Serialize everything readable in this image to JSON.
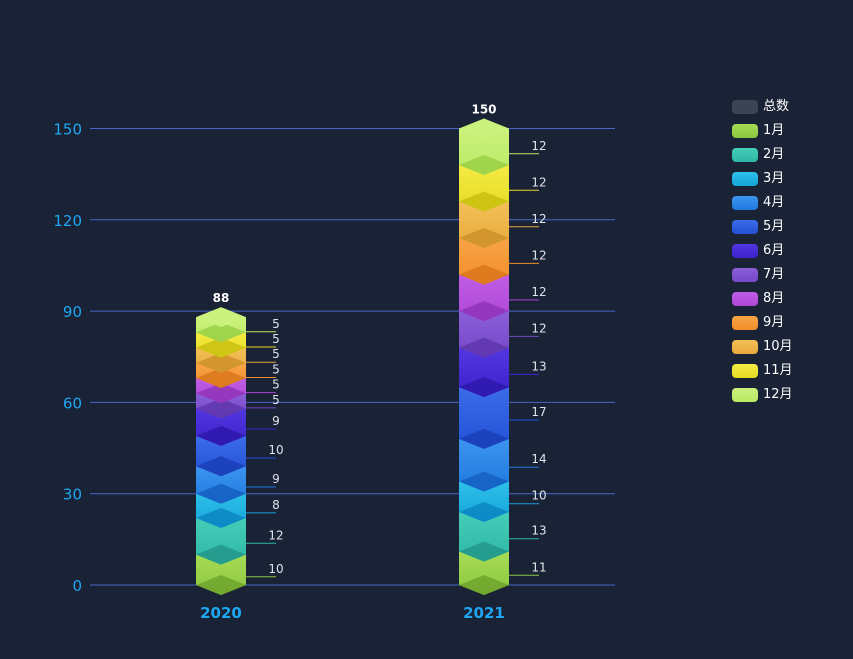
{
  "chart_data": {
    "type": "bar",
    "stacked": true,
    "categories": [
      "2020",
      "2021"
    ],
    "totals": [
      88,
      150
    ],
    "total_series_name": "总数",
    "total_series_color": "#3b4354",
    "series": [
      {
        "name": "1月",
        "values": [
          10,
          11
        ],
        "color": "#8cc63f",
        "color_light": "#a7dc55",
        "color_dark": "#6ea52c"
      },
      {
        "name": "2月",
        "values": [
          12,
          13
        ],
        "color": "#2fb7a7",
        "color_light": "#45cdb8",
        "color_dark": "#22968a"
      },
      {
        "name": "3月",
        "values": [
          8,
          10
        ],
        "color": "#14a4d8",
        "color_light": "#2ec0ea",
        "color_dark": "#0b86c2"
      },
      {
        "name": "4月",
        "values": [
          9,
          14
        ],
        "color": "#1f78e0",
        "color_light": "#3c95ee",
        "color_dark": "#155fc2"
      },
      {
        "name": "5月",
        "values": [
          10,
          17
        ],
        "color": "#2350d6",
        "color_light": "#3b6ce8",
        "color_dark": "#1a3eb8"
      },
      {
        "name": "6月",
        "values": [
          9,
          13
        ],
        "color": "#3d22cc",
        "color_light": "#5236e0",
        "color_dark": "#2d18aa"
      },
      {
        "name": "7月",
        "values": [
          5,
          12
        ],
        "color": "#7447c8",
        "color_light": "#8a5fd8",
        "color_dark": "#5e36ac"
      },
      {
        "name": "8月",
        "values": [
          5,
          12
        ],
        "color": "#ad47d6",
        "color_light": "#c05de6",
        "color_dark": "#9034b8"
      },
      {
        "name": "9月",
        "values": [
          5,
          12
        ],
        "color": "#f28d2a",
        "color_light": "#f7a547",
        "color_dark": "#d9771b"
      },
      {
        "name": "10月",
        "values": [
          5,
          12
        ],
        "color": "#e8aa3c",
        "color_light": "#f2c058",
        "color_dark": "#cf922a"
      },
      {
        "name": "11月",
        "values": [
          5,
          12
        ],
        "color": "#e4d920",
        "color_light": "#f5ec45",
        "color_dark": "#c9bf10"
      },
      {
        "name": "12月",
        "values": [
          5,
          12
        ],
        "color": "#b8ea62",
        "color_light": "#ccf27e",
        "color_dark": "#9bd046"
      }
    ],
    "ylim": [
      0,
      150
    ],
    "yticks": [
      0,
      30,
      60,
      90,
      120,
      150
    ],
    "grid": true,
    "legend_position": "right",
    "colors": {
      "background": "#1a2236",
      "axis_text": "#1ea7f0",
      "grid": "#4a66c8",
      "label_text": "#dfe3ea",
      "total_text": "#ffffff"
    }
  }
}
